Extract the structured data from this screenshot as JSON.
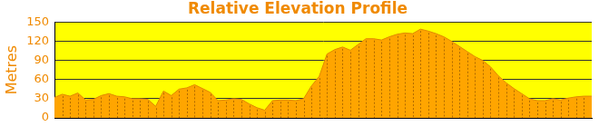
{
  "chart_data": {
    "type": "area",
    "title": "Relative Elevation Profile",
    "y_label": "Metres",
    "categories": [
      null,
      null,
      null,
      null,
      null,
      null,
      null,
      null,
      null,
      null,
      null,
      null,
      null,
      null,
      null,
      null,
      null,
      null,
      null,
      null,
      null,
      null,
      null,
      null,
      null,
      null,
      null,
      null,
      null,
      null,
      null,
      null,
      null,
      null,
      null,
      null,
      null,
      null,
      null,
      null,
      null,
      null,
      null,
      null,
      null,
      null,
      null,
      null,
      null,
      null,
      null,
      null,
      null,
      null,
      null,
      null,
      null,
      null,
      null,
      null,
      null,
      null,
      null,
      null,
      null,
      null,
      null,
      null,
      null,
      null
    ],
    "values": [
      32,
      37,
      34,
      39,
      28,
      29,
      35,
      38,
      34,
      33,
      30,
      30,
      29,
      18,
      42,
      35,
      45,
      47,
      52,
      46,
      40,
      27,
      28,
      30,
      29,
      22,
      16,
      12,
      27,
      28,
      28,
      27,
      30,
      50,
      65,
      100,
      107,
      111,
      106,
      115,
      124,
      124,
      122,
      127,
      131,
      133,
      132,
      139,
      136,
      132,
      127,
      120,
      112,
      104,
      96,
      90,
      80,
      66,
      55,
      46,
      38,
      30,
      27,
      27,
      30,
      28,
      31,
      33,
      34,
      34
    ],
    "color": "#ffa500",
    "ylim": [
      0,
      150
    ],
    "yticks": [
      0,
      30,
      60,
      90,
      120,
      150
    ],
    "grid": true,
    "tick_labels": "y"
  }
}
